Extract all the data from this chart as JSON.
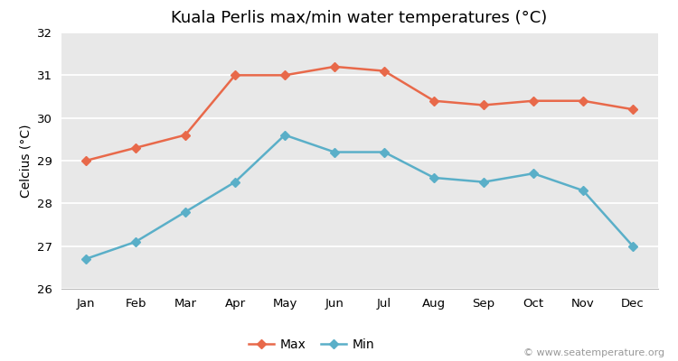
{
  "title": "Kuala Perlis max/min water temperatures (°C)",
  "ylabel": "Celcius (°C)",
  "months": [
    "Jan",
    "Feb",
    "Mar",
    "Apr",
    "May",
    "Jun",
    "Jul",
    "Aug",
    "Sep",
    "Oct",
    "Nov",
    "Dec"
  ],
  "max_temps": [
    29.0,
    29.3,
    29.6,
    31.0,
    31.0,
    31.2,
    31.1,
    30.4,
    30.3,
    30.4,
    30.4,
    30.2
  ],
  "min_temps": [
    26.7,
    27.1,
    27.8,
    28.5,
    29.6,
    29.2,
    29.2,
    28.6,
    28.5,
    28.7,
    28.3,
    27.0
  ],
  "max_color": "#e8694a",
  "min_color": "#5aafc8",
  "bg_color": "#e8e8e8",
  "fig_bg_color": "#ffffff",
  "ylim": [
    26.0,
    32.0
  ],
  "yticks": [
    26,
    27,
    28,
    29,
    30,
    31,
    32
  ],
  "legend_labels": [
    "Max",
    "Min"
  ],
  "watermark": "© www.seatemperature.org",
  "title_fontsize": 13,
  "label_fontsize": 10,
  "tick_fontsize": 9.5,
  "watermark_fontsize": 8,
  "line_width": 1.8,
  "marker": "D",
  "marker_size": 5
}
